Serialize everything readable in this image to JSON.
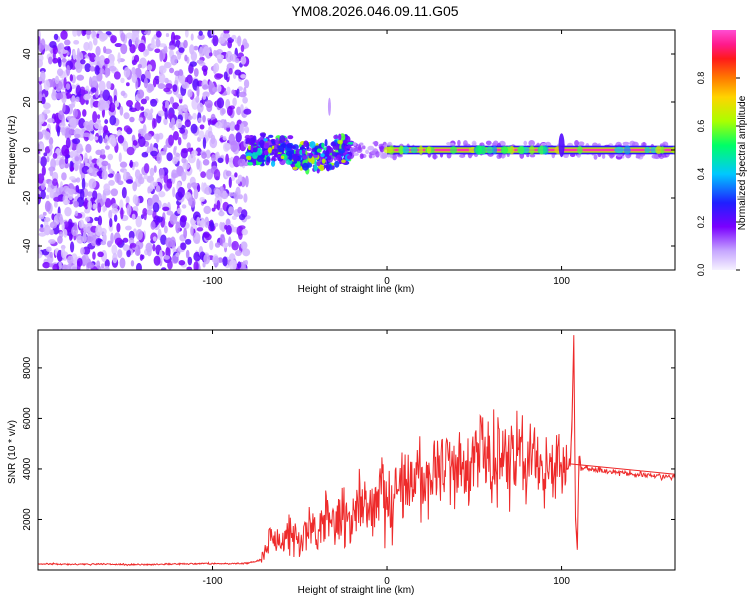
{
  "figure_title": "YM08.2026.046.09.11.G05",
  "chart_data": [
    {
      "type": "heatmap",
      "xlabel": "Height of straight line (km)",
      "ylabel": "Frequency (Hz)",
      "xlim": [
        -200,
        165
      ],
      "ylim": [
        -50,
        50
      ],
      "xticks": [
        -100,
        0,
        100
      ],
      "xtick_labels": [
        "-100",
        "0",
        "100"
      ],
      "yticks": [
        -40,
        -20,
        0,
        20,
        40
      ],
      "ytick_labels": [
        "-40",
        "-20",
        "0",
        "20",
        "40"
      ],
      "colorbar": {
        "label": "Normalized spectral amplitude",
        "range": [
          0,
          1
        ],
        "ticks": [
          0.0,
          0.2,
          0.4,
          0.6,
          0.8
        ],
        "tick_labels": [
          "0.0",
          "0.2",
          "0.4",
          "0.6",
          "0.8"
        ],
        "colors": [
          "#f4f0ff",
          "#c9a4ff",
          "#7a00ff",
          "#1a1aff",
          "#00c8ff",
          "#00ff66",
          "#aaff00",
          "#ffd400",
          "#ff7a00",
          "#ff1a1a",
          "#ff1a8c",
          "#ff4dd2"
        ]
      },
      "description_regions": [
        {
          "x_range": [
            -200,
            -80
          ],
          "kind": "broadband noise",
          "amplitude": 0.15
        },
        {
          "x_range": [
            -80,
            -20
          ],
          "kind": "scattered signal near 0 Hz",
          "amplitude": 0.45
        },
        {
          "x_range": [
            0,
            165
          ],
          "kind": "stable line at 0 Hz",
          "amplitude": 0.95
        }
      ]
    },
    {
      "type": "line",
      "xlabel": "Height of straight line (km)",
      "ylabel": "SNR (10 * v/v)",
      "xlim": [
        -200,
        165
      ],
      "ylim": [
        0,
        9500
      ],
      "xticks": [
        -100,
        0,
        100
      ],
      "xtick_labels": [
        "-100",
        "0",
        "100"
      ],
      "yticks": [
        2000,
        4000,
        6000,
        8000
      ],
      "ytick_labels": [
        "2000",
        "4000",
        "6000",
        "8000"
      ],
      "series": [
        {
          "name": "SNR",
          "color": "#ee2a2a",
          "x": [
            -200,
            -180,
            -160,
            -140,
            -120,
            -100,
            -90,
            -80,
            -72,
            -68,
            -64,
            -60,
            -55,
            -50,
            -45,
            -40,
            -35,
            -30,
            -25,
            -20,
            -15,
            -10,
            -5,
            0,
            5,
            10,
            15,
            20,
            25,
            30,
            35,
            40,
            45,
            50,
            55,
            60,
            65,
            70,
            75,
            80,
            85,
            90,
            95,
            100,
            103,
            105,
            106,
            107,
            108,
            109,
            110,
            111,
            112,
            115,
            120,
            130,
            140,
            150,
            165
          ],
          "y": [
            250,
            220,
            230,
            210,
            240,
            260,
            250,
            270,
            400,
            1200,
            1400,
            1000,
            1500,
            900,
            1800,
            1300,
            2200,
            1600,
            2500,
            1700,
            2600,
            2200,
            2600,
            2700,
            3000,
            3300,
            3500,
            3700,
            3900,
            4000,
            4100,
            4200,
            4300,
            4100,
            4900,
            4300,
            4600,
            4200,
            4500,
            4200,
            4400,
            4100,
            4300,
            4100,
            4000,
            4200,
            6000,
            9300,
            2000,
            800,
            4500,
            4100,
            4000,
            4050,
            3950,
            3900,
            3800,
            3750,
            3650
          ]
        }
      ]
    }
  ]
}
